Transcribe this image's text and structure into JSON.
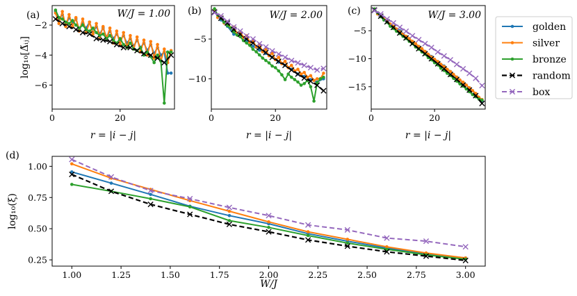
{
  "colors": {
    "golden": "#1f77b4",
    "silver": "#ff7f0e",
    "bronze": "#2ca02c",
    "random": "#000000",
    "box": "#9467bd"
  },
  "legend": {
    "location": "right, outside panels",
    "entries": [
      {
        "key": "golden",
        "label": "golden",
        "style": "solid-dot"
      },
      {
        "key": "silver",
        "label": "silver",
        "style": "solid-dot"
      },
      {
        "key": "bronze",
        "label": "bronze",
        "style": "solid-dot"
      },
      {
        "key": "random",
        "label": "random",
        "style": "dashed-x"
      },
      {
        "key": "box",
        "label": "box",
        "style": "dashed-x"
      }
    ]
  },
  "chart_data": [
    {
      "type": "line",
      "panel_label": "(a)",
      "title": "W/J = 1.00",
      "xlabel": "r = |i − j|",
      "ylabel": "log₁₀[Δ̃ᵢⱼ]",
      "xlim": [
        0,
        36
      ],
      "ylim": [
        -7.6,
        -0.7
      ],
      "xticks": [
        0,
        20
      ],
      "yticks": [
        -2,
        -4,
        -6
      ],
      "grid": false,
      "series": [
        {
          "name": "golden",
          "x": [
            1,
            2,
            3,
            4,
            5,
            6,
            7,
            8,
            9,
            10,
            11,
            12,
            13,
            14,
            15,
            16,
            17,
            18,
            19,
            20,
            21,
            22,
            23,
            24,
            25,
            26,
            27,
            28,
            29,
            30,
            31,
            32,
            33,
            34,
            35
          ],
          "values": [
            -1.1,
            -1.6,
            -1.3,
            -2.0,
            -1.5,
            -1.9,
            -1.6,
            -2.3,
            -1.9,
            -2.2,
            -1.8,
            -2.5,
            -2.1,
            -2.6,
            -2.2,
            -2.8,
            -2.4,
            -2.9,
            -2.6,
            -3.0,
            -2.7,
            -3.2,
            -2.9,
            -3.4,
            -3.0,
            -3.5,
            -3.2,
            -3.7,
            -3.3,
            -3.9,
            -3.5,
            -4.0,
            -3.8,
            -5.2,
            -5.2
          ]
        },
        {
          "name": "silver",
          "x": [
            1,
            2,
            3,
            4,
            5,
            6,
            7,
            8,
            9,
            10,
            11,
            12,
            13,
            14,
            15,
            16,
            17,
            18,
            19,
            20,
            21,
            22,
            23,
            24,
            25,
            26,
            27,
            28,
            29,
            30,
            31,
            32,
            33,
            34,
            35
          ],
          "values": [
            -1.2,
            -1.9,
            -1.1,
            -2.1,
            -1.3,
            -2.1,
            -1.5,
            -2.4,
            -1.6,
            -2.5,
            -1.8,
            -2.6,
            -1.9,
            -2.8,
            -2.1,
            -2.9,
            -2.2,
            -3.2,
            -2.4,
            -3.3,
            -2.5,
            -3.5,
            -2.7,
            -3.6,
            -2.8,
            -3.8,
            -3.0,
            -4.0,
            -3.1,
            -4.2,
            -3.3,
            -4.4,
            -3.6,
            -4.5,
            -3.7
          ]
        },
        {
          "name": "bronze",
          "x": [
            1,
            2,
            3,
            4,
            5,
            6,
            7,
            8,
            9,
            10,
            11,
            12,
            13,
            14,
            15,
            16,
            17,
            18,
            19,
            20,
            21,
            22,
            23,
            24,
            25,
            26,
            27,
            28,
            29,
            30,
            31,
            32,
            33,
            34,
            35
          ],
          "values": [
            -1.0,
            -1.5,
            -1.6,
            -1.8,
            -1.9,
            -1.7,
            -2.0,
            -2.2,
            -2.0,
            -2.3,
            -2.4,
            -2.2,
            -2.5,
            -2.7,
            -2.6,
            -2.9,
            -2.7,
            -3.0,
            -3.2,
            -2.9,
            -3.3,
            -3.5,
            -3.2,
            -3.6,
            -3.7,
            -3.5,
            -4.0,
            -3.8,
            -4.1,
            -4.5,
            -4.0,
            -4.4,
            -7.2,
            -3.8,
            -3.8
          ]
        },
        {
          "name": "random",
          "x": [
            1,
            3,
            5,
            7,
            9,
            11,
            13,
            15,
            17,
            19,
            21,
            23,
            25,
            27,
            29,
            31,
            33,
            35
          ],
          "values": [
            -1.6,
            -1.9,
            -2.1,
            -2.3,
            -2.5,
            -2.6,
            -2.9,
            -3.0,
            -3.1,
            -3.3,
            -3.5,
            -3.5,
            -3.7,
            -3.9,
            -4.0,
            -4.2,
            -4.5,
            -4.0
          ]
        }
      ]
    },
    {
      "type": "line",
      "panel_label": "(b)",
      "title": "W/J = 2.00",
      "xlabel": "r = |i − j|",
      "ylabel": "",
      "xlim": [
        0,
        36
      ],
      "ylim": [
        -13.8,
        -0.8
      ],
      "xticks": [
        0,
        20
      ],
      "yticks": [
        -5,
        -10
      ],
      "grid": false,
      "series": [
        {
          "name": "golden",
          "x": [
            1,
            3,
            5,
            7,
            9,
            11,
            13,
            15,
            17,
            19,
            21,
            23,
            25,
            27,
            29,
            31,
            33,
            35
          ],
          "values": [
            -1.5,
            -2.6,
            -3.4,
            -4.4,
            -4.3,
            -5.2,
            -5.9,
            -6.4,
            -6.8,
            -7.3,
            -7.9,
            -8.3,
            -8.8,
            -9.4,
            -9.7,
            -10.1,
            -10.4,
            -10.0
          ]
        },
        {
          "name": "silver",
          "x": [
            1,
            2,
            3,
            4,
            5,
            6,
            7,
            8,
            9,
            10,
            11,
            12,
            13,
            14,
            15,
            16,
            17,
            18,
            19,
            20,
            21,
            22,
            23,
            24,
            25,
            26,
            27,
            28,
            29,
            30,
            31,
            32,
            33,
            34,
            35
          ],
          "values": [
            -1.3,
            -2.3,
            -2.2,
            -3.0,
            -2.9,
            -3.6,
            -3.5,
            -4.3,
            -4.1,
            -4.8,
            -4.6,
            -5.4,
            -5.2,
            -6.0,
            -5.7,
            -6.6,
            -6.3,
            -7.1,
            -6.8,
            -7.6,
            -7.3,
            -8.1,
            -7.8,
            -8.6,
            -8.3,
            -9.0,
            -8.8,
            -9.4,
            -9.2,
            -9.8,
            -9.6,
            -10.2,
            -10.0,
            -10.0,
            -9.3
          ]
        },
        {
          "name": "bronze",
          "x": [
            1,
            2,
            3,
            4,
            5,
            6,
            7,
            8,
            9,
            10,
            11,
            12,
            13,
            14,
            15,
            16,
            17,
            18,
            19,
            20,
            21,
            22,
            23,
            24,
            25,
            26,
            27,
            28,
            29,
            30,
            31,
            32,
            33,
            34,
            35
          ],
          "values": [
            -1.2,
            -2.0,
            -2.4,
            -2.9,
            -3.3,
            -3.6,
            -4.1,
            -4.5,
            -4.7,
            -5.2,
            -5.5,
            -5.8,
            -6.3,
            -6.6,
            -7.0,
            -7.4,
            -7.7,
            -8.0,
            -8.4,
            -8.6,
            -9.0,
            -9.5,
            -10.1,
            -9.4,
            -9.8,
            -10.1,
            -10.4,
            -10.8,
            -10.6,
            -10.2,
            -11.0,
            -12.8,
            -10.5,
            -10.0,
            -9.8
          ]
        },
        {
          "name": "random",
          "x": [
            1,
            3,
            5,
            7,
            9,
            11,
            13,
            15,
            17,
            19,
            21,
            23,
            25,
            27,
            29,
            31,
            33,
            35
          ],
          "values": [
            -1.6,
            -2.4,
            -3.0,
            -3.8,
            -4.4,
            -5.0,
            -5.5,
            -6.1,
            -6.7,
            -7.3,
            -7.8,
            -8.3,
            -8.9,
            -9.4,
            -9.9,
            -10.3,
            -10.8,
            -11.5
          ]
        },
        {
          "name": "box",
          "x": [
            1,
            3,
            5,
            7,
            9,
            11,
            13,
            15,
            17,
            19,
            21,
            23,
            25,
            27,
            29,
            31,
            33,
            35
          ],
          "values": [
            -1.7,
            -2.1,
            -2.8,
            -3.5,
            -4.0,
            -4.6,
            -5.0,
            -5.6,
            -6.0,
            -6.5,
            -6.9,
            -7.3,
            -7.7,
            -8.0,
            -8.3,
            -8.6,
            -8.9,
            -8.7
          ]
        }
      ]
    },
    {
      "type": "line",
      "panel_label": "(c)",
      "title": "W/J = 3.00",
      "xlabel": "r = |i − j|",
      "ylabel": "",
      "xlim": [
        0,
        36
      ],
      "ylim": [
        -19.0,
        -0.5
      ],
      "xticks": [
        0,
        20
      ],
      "yticks": [
        -5,
        -10,
        -15
      ],
      "grid": false,
      "series": [
        {
          "name": "golden",
          "x": [
            1,
            3,
            5,
            7,
            9,
            11,
            13,
            15,
            17,
            19,
            21,
            23,
            25,
            27,
            29,
            31,
            33,
            35
          ],
          "values": [
            -1.3,
            -2.3,
            -3.3,
            -4.2,
            -5.0,
            -6.0,
            -6.9,
            -7.8,
            -8.7,
            -9.6,
            -10.5,
            -11.3,
            -12.3,
            -13.3,
            -14.3,
            -15.2,
            -16.3,
            -17.5
          ]
        },
        {
          "name": "silver",
          "x": [
            1,
            2,
            3,
            4,
            5,
            6,
            7,
            8,
            9,
            10,
            11,
            12,
            13,
            14,
            15,
            16,
            17,
            18,
            19,
            20,
            21,
            22,
            23,
            24,
            25,
            26,
            27,
            28,
            29,
            30,
            31,
            32,
            33,
            34,
            35
          ],
          "values": [
            -1.2,
            -2.0,
            -2.4,
            -2.9,
            -3.3,
            -3.8,
            -4.2,
            -4.7,
            -5.2,
            -5.6,
            -6.0,
            -6.4,
            -6.9,
            -7.3,
            -7.8,
            -8.2,
            -8.7,
            -9.2,
            -9.7,
            -10.1,
            -10.5,
            -11.0,
            -11.4,
            -11.9,
            -12.3,
            -12.8,
            -13.3,
            -13.8,
            -14.2,
            -14.7,
            -15.2,
            -15.7,
            -16.2,
            -16.9,
            -17.3
          ]
        },
        {
          "name": "bronze",
          "x": [
            1,
            2,
            3,
            4,
            5,
            6,
            7,
            8,
            9,
            10,
            11,
            12,
            13,
            14,
            15,
            16,
            17,
            18,
            19,
            20,
            21,
            22,
            23,
            24,
            25,
            26,
            27,
            28,
            29,
            30,
            31,
            32,
            33,
            34,
            35
          ],
          "values": [
            -1.1,
            -1.8,
            -2.5,
            -3.1,
            -3.5,
            -4.2,
            -4.6,
            -5.1,
            -5.5,
            -6.0,
            -6.4,
            -6.9,
            -7.3,
            -7.9,
            -8.3,
            -8.8,
            -9.2,
            -9.8,
            -10.2,
            -10.7,
            -11.1,
            -11.7,
            -12.1,
            -12.6,
            -13.0,
            -13.5,
            -14.0,
            -14.5,
            -14.9,
            -15.4,
            -15.9,
            -16.4,
            -16.8,
            -17.2,
            -17.4
          ]
        },
        {
          "name": "random",
          "x": [
            1,
            3,
            5,
            7,
            9,
            11,
            13,
            15,
            17,
            19,
            21,
            23,
            25,
            27,
            29,
            31,
            33,
            35
          ],
          "values": [
            -1.3,
            -2.4,
            -3.4,
            -4.4,
            -5.4,
            -6.3,
            -7.3,
            -8.2,
            -9.1,
            -10.0,
            -10.9,
            -11.8,
            -12.8,
            -13.7,
            -14.7,
            -15.6,
            -16.6,
            -18.0
          ]
        },
        {
          "name": "box",
          "x": [
            1,
            3,
            5,
            7,
            9,
            11,
            13,
            15,
            17,
            19,
            21,
            23,
            25,
            27,
            29,
            31,
            33,
            35
          ],
          "values": [
            -1.4,
            -2.0,
            -2.9,
            -3.6,
            -4.4,
            -5.1,
            -5.9,
            -6.6,
            -7.3,
            -8.0,
            -8.8,
            -9.5,
            -10.2,
            -11.0,
            -11.8,
            -12.6,
            -13.5,
            -14.8
          ]
        }
      ]
    },
    {
      "type": "line",
      "panel_label": "(d)",
      "title": "",
      "xlabel": "W/J",
      "ylabel": "log₁₀(ξ)",
      "xlim": [
        0.9,
        3.1
      ],
      "ylim": [
        0.2,
        1.08
      ],
      "xticks": [
        1.0,
        1.25,
        1.5,
        1.75,
        2.0,
        2.25,
        2.5,
        2.75,
        3.0
      ],
      "xticklabels": [
        "1.00",
        "1.25",
        "1.50",
        "1.75",
        "2.00",
        "2.25",
        "2.50",
        "2.75",
        "3.00"
      ],
      "yticks": [
        0.25,
        0.5,
        0.75,
        1.0
      ],
      "yticklabels": [
        "0.25",
        "0.50",
        "0.75",
        "1.00"
      ],
      "grid": false,
      "series": [
        {
          "name": "golden",
          "x": [
            1.0,
            1.2,
            1.4,
            1.6,
            1.8,
            2.0,
            2.2,
            2.4,
            2.6,
            2.8,
            3.0
          ],
          "values": [
            0.955,
            0.865,
            0.775,
            0.68,
            0.605,
            0.54,
            0.46,
            0.4,
            0.345,
            0.3,
            0.265
          ]
        },
        {
          "name": "silver",
          "x": [
            1.0,
            1.2,
            1.4,
            1.6,
            1.8,
            2.0,
            2.2,
            2.4,
            2.6,
            2.8,
            3.0
          ],
          "values": [
            1.02,
            0.905,
            0.815,
            0.725,
            0.64,
            0.555,
            0.475,
            0.415,
            0.355,
            0.305,
            0.265
          ]
        },
        {
          "name": "bronze",
          "x": [
            1.0,
            1.2,
            1.4,
            1.6,
            1.8,
            2.0,
            2.2,
            2.4,
            2.6,
            2.8,
            3.0
          ],
          "values": [
            0.855,
            0.8,
            0.74,
            0.675,
            0.565,
            0.51,
            0.445,
            0.385,
            0.335,
            0.29,
            0.255
          ]
        },
        {
          "name": "random",
          "x": [
            1.0,
            1.2,
            1.4,
            1.6,
            1.8,
            2.0,
            2.2,
            2.4,
            2.6,
            2.8,
            3.0
          ],
          "values": [
            0.935,
            0.8,
            0.695,
            0.615,
            0.535,
            0.475,
            0.41,
            0.36,
            0.315,
            0.28,
            0.245
          ]
        },
        {
          "name": "box",
          "x": [
            1.0,
            1.2,
            1.4,
            1.6,
            1.8,
            2.0,
            2.2,
            2.4,
            2.6,
            2.8,
            3.0
          ],
          "values": [
            1.055,
            0.915,
            0.805,
            0.74,
            0.67,
            0.605,
            0.53,
            0.49,
            0.425,
            0.4,
            0.355
          ]
        }
      ]
    }
  ]
}
